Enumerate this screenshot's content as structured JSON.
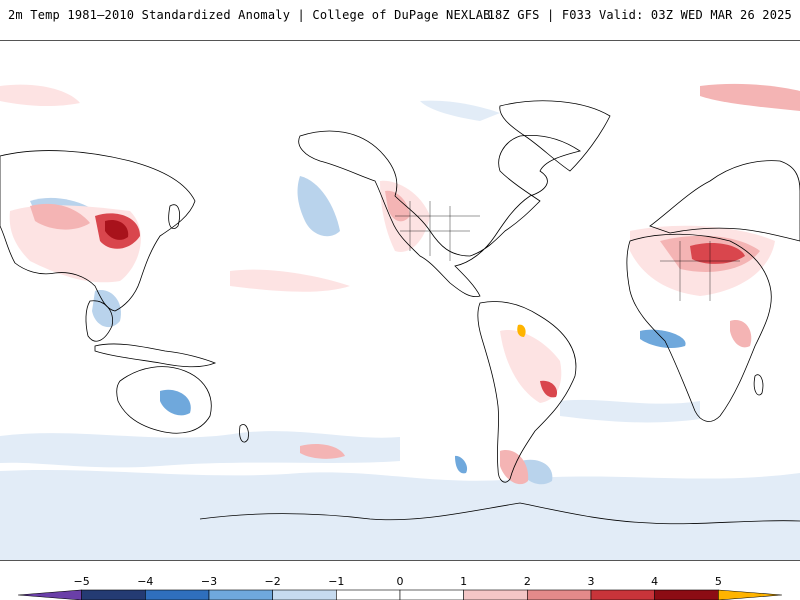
{
  "header": {
    "title": "2m Temp 1981–2010 Standardized Anomaly | College of DuPage NEXLAB",
    "run": "18Z GFS | F033 Valid: 03Z WED MAR 26 2025"
  },
  "colorbar": {
    "ticks": [
      "−5",
      "−4",
      "−3",
      "−2",
      "−1",
      "0",
      "1",
      "2",
      "3",
      "4",
      "5"
    ],
    "colors": [
      "#6a3fa8",
      "#243b73",
      "#2f6fbd",
      "#6fa8dc",
      "#c6dbef",
      "#ffffff",
      "#ffffff",
      "#f4c6c6",
      "#e48a8a",
      "#c8343a",
      "#8c0c14",
      "#ffb400"
    ]
  },
  "map": {
    "ocean_color": "#ffffff",
    "land_outline_color": "#000000",
    "warm_colors": [
      "#fde3e3",
      "#f4b4b4",
      "#d9464d",
      "#a8121b"
    ],
    "cold_colors": [
      "#e2ecf7",
      "#b9d3ec",
      "#6fa8dc",
      "#2f6fbd"
    ]
  }
}
